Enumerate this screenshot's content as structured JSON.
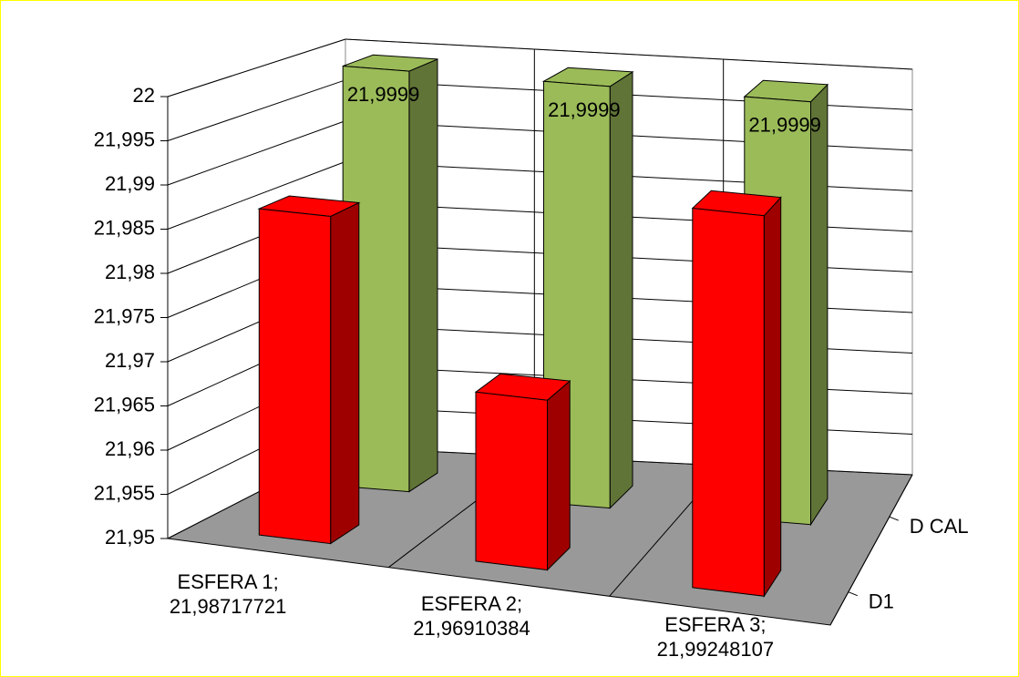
{
  "chart_data": {
    "type": "bar3d",
    "categories": [
      "ESFERA 1; 21,98717721",
      "ESFERA 2; 21,96910384",
      "ESFERA 3; 21,99248107"
    ],
    "series": [
      {
        "name": "D1",
        "color": "#ff0000",
        "values": [
          21.98717721,
          21.96910384,
          21.99248107
        ]
      },
      {
        "name": "D CAL",
        "color": "#9bbb59",
        "values": [
          21.9999,
          21.9999,
          21.9999
        ],
        "value_labels": [
          "21,9999",
          "21,9999",
          "21,9999"
        ]
      }
    ],
    "ylim": [
      21.95,
      22
    ],
    "yticks": [
      {
        "value": 21.95,
        "label": "21,95"
      },
      {
        "value": 21.955,
        "label": "21,955"
      },
      {
        "value": 21.96,
        "label": "21,96"
      },
      {
        "value": 21.965,
        "label": "21,965"
      },
      {
        "value": 21.97,
        "label": "21,97"
      },
      {
        "value": 21.975,
        "label": "21,975"
      },
      {
        "value": 21.98,
        "label": "21,98"
      },
      {
        "value": 21.985,
        "label": "21,985"
      },
      {
        "value": 21.99,
        "label": "21,99"
      },
      {
        "value": 21.995,
        "label": "21,995"
      },
      22
    ],
    "grid": true
  }
}
